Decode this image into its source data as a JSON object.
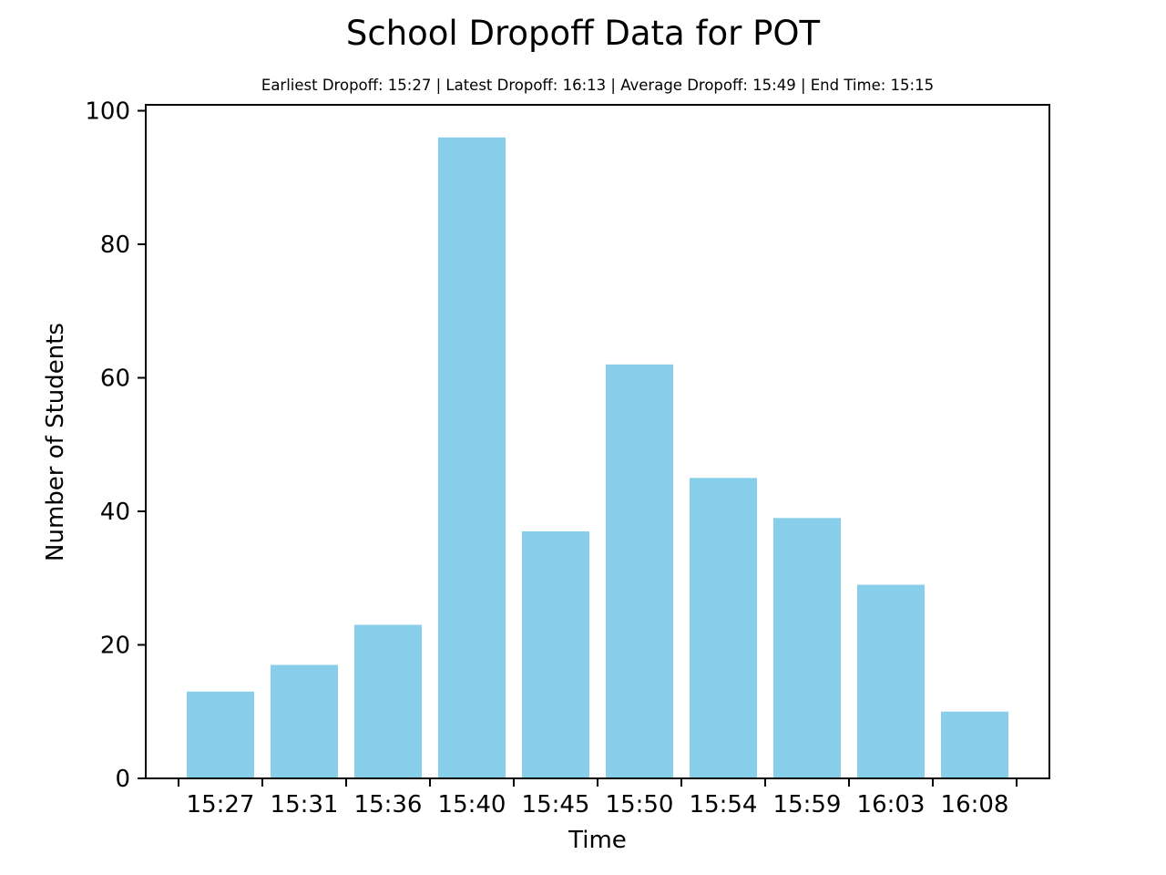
{
  "chart_data": {
    "type": "bar",
    "title": "School Dropoff Data for POT",
    "subtitle": "Earliest Dropoff: 15:27 | Latest Dropoff: 16:13 | Average Dropoff: 15:49 | End Time: 15:15",
    "xlabel": "Time",
    "ylabel": "Number of Students",
    "categories": [
      "15:27",
      "15:31",
      "15:36",
      "15:40",
      "15:45",
      "15:50",
      "15:54",
      "15:59",
      "16:03",
      "16:08"
    ],
    "values": [
      13,
      17,
      23,
      96,
      37,
      62,
      45,
      39,
      29,
      10
    ],
    "ylim": [
      0,
      100
    ],
    "yticks": [
      0,
      20,
      40,
      60,
      80,
      100
    ],
    "grid": false,
    "legend": "none",
    "bar_color": "#87ceeb"
  }
}
